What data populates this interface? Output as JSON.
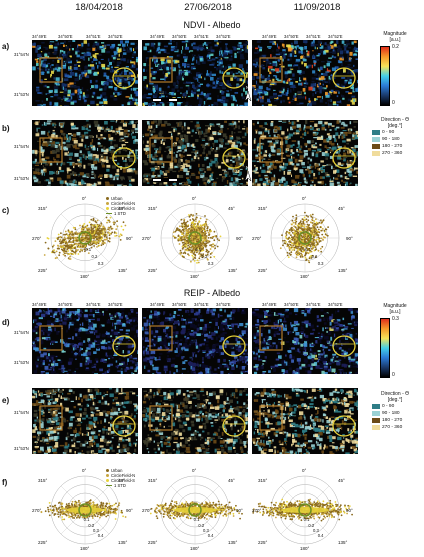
{
  "dates": [
    "18/04/2018",
    "27/06/2018",
    "11/09/2018"
  ],
  "sections": {
    "ndvi": "NDVI - Albedo",
    "reip": "REIP - Albedo"
  },
  "panel_labels": [
    "a)",
    "b)",
    "c)",
    "d)",
    "e)",
    "f)"
  ],
  "lon_ticks": [
    "34°49'E",
    "34°50'E",
    "34°51'E",
    "34°52'E"
  ],
  "lat_ticks": [
    "31°54'N",
    "31°53'N"
  ],
  "scale_bar": {
    "start": "0",
    "end": "2km"
  },
  "north": "N",
  "magnitude_legend": {
    "title_line1": "Magnitude",
    "title_line2": "[a.u.]",
    "ndvi_max": "0.2",
    "reip_max": "0.3",
    "min": "0",
    "colors": [
      "#000000",
      "#1a3a6b",
      "#2b7bd6",
      "#44d0e8",
      "#f6e35a",
      "#f59a2a",
      "#e0301c"
    ]
  },
  "direction_legend": {
    "title_line1": "Direction - Θ",
    "title_line2": "[deg.°]",
    "items": [
      {
        "label": "0 - 90",
        "color": "#2e7d86"
      },
      {
        "label": "90 - 180",
        "color": "#9ad1d4"
      },
      {
        "label": "180 - 270",
        "color": "#6b4a17"
      },
      {
        "label": "270 - 360",
        "color": "#f0dc9c"
      }
    ]
  },
  "polar": {
    "angles": [
      "0°",
      "45°",
      "90°",
      "135°",
      "180°",
      "225°",
      "270°",
      "315°"
    ],
    "radii_ndvi": [
      "0.1",
      "0.2",
      "0.3"
    ],
    "radii_reip": [
      "0.1",
      "0.2",
      "0.3",
      "0.4"
    ],
    "legend": [
      "Urban",
      "CircleField-N",
      "CircleField-S",
      "1 STD"
    ],
    "colors": {
      "urban": "#8a6a1e",
      "cfn": "#c8a640",
      "cfs": "#e7d23a",
      "std": "#6b8e23"
    }
  }
}
